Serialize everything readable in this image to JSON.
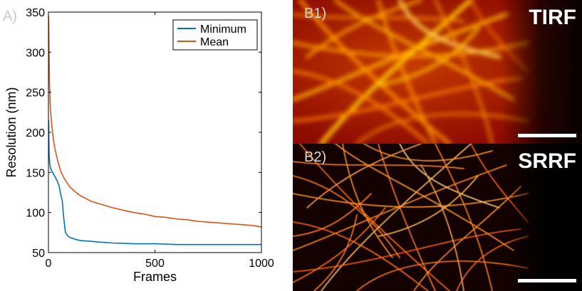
{
  "panel_a": {
    "letter": "A)",
    "chart_data": {
      "type": "line",
      "xlabel": "Frames",
      "ylabel": "Resolution (nm)",
      "xlim": [
        0,
        1000
      ],
      "ylim": [
        50,
        350
      ],
      "xticks": [
        0,
        500,
        1000
      ],
      "yticks": [
        50,
        100,
        150,
        200,
        250,
        300,
        350
      ],
      "legend_position": "top-right",
      "grid": false,
      "series": [
        {
          "name": "Minimum",
          "color": "#0072bd",
          "x": [
            1,
            3,
            6,
            10,
            15,
            20,
            25,
            30,
            40,
            50,
            55,
            60,
            65,
            70,
            75,
            80,
            90,
            100,
            120,
            150,
            200,
            250,
            300,
            400,
            500,
            600,
            700,
            800,
            900,
            1000
          ],
          "y": [
            215,
            175,
            160,
            155,
            152,
            150,
            147,
            145,
            140,
            133,
            126,
            120,
            115,
            98,
            86,
            75,
            71,
            69,
            67,
            65,
            64,
            63,
            62,
            61,
            61,
            60,
            60,
            60,
            60,
            60
          ]
        },
        {
          "name": "Mean",
          "color": "#d95319",
          "x": [
            1,
            3,
            5,
            8,
            12,
            16,
            20,
            25,
            30,
            40,
            50,
            60,
            75,
            100,
            125,
            150,
            200,
            250,
            300,
            350,
            400,
            450,
            500,
            550,
            600,
            650,
            700,
            750,
            800,
            850,
            900,
            950,
            1000
          ],
          "y": [
            345,
            300,
            260,
            235,
            220,
            208,
            198,
            188,
            180,
            168,
            158,
            150,
            142,
            132,
            126,
            121,
            114,
            110,
            106,
            103,
            100,
            98,
            95,
            94,
            92,
            91,
            89,
            88,
            87,
            86,
            85,
            84,
            82
          ]
        }
      ]
    }
  },
  "panel_b1": {
    "letter": "B1)",
    "mode": "TIRF"
  },
  "panel_b2": {
    "letter": "B2)",
    "mode": "SRRF"
  }
}
